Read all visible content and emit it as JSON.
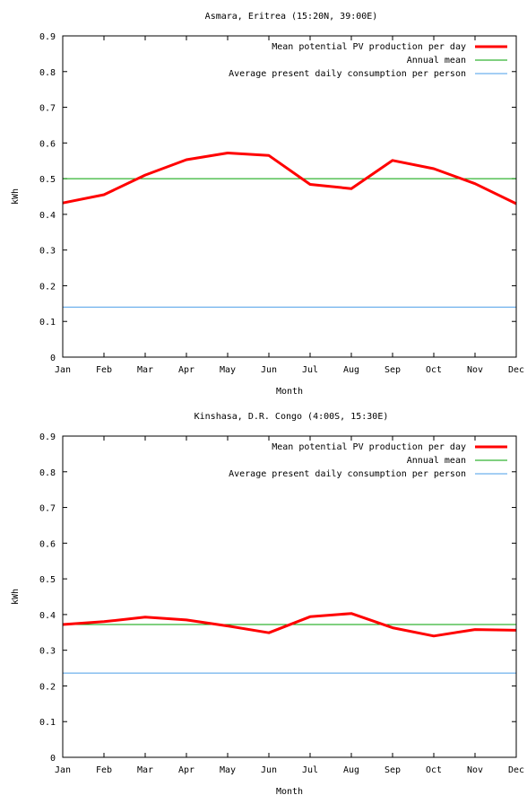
{
  "chart_data": [
    {
      "type": "line",
      "title": "Asmara, Eritrea (15:20N, 39:00E)",
      "xlabel": "Month",
      "ylabel": "kWh",
      "categories": [
        "Jan",
        "Feb",
        "Mar",
        "Apr",
        "May",
        "Jun",
        "Jul",
        "Aug",
        "Sep",
        "Oct",
        "Nov",
        "Dec"
      ],
      "ylim": [
        0,
        0.9
      ],
      "yticks": [
        "0",
        "0.1",
        "0.2",
        "0.3",
        "0.4",
        "0.5",
        "0.6",
        "0.7",
        "0.8",
        "0.9"
      ],
      "grid": false,
      "legend_position": "top-right",
      "series": [
        {
          "name": "Mean potential PV production per day",
          "color": "#ff0000",
          "values": [
            0.432,
            0.455,
            0.51,
            0.553,
            0.572,
            0.565,
            0.484,
            0.472,
            0.551,
            0.528,
            0.486,
            0.43
          ]
        },
        {
          "name": "Annual mean",
          "color": "#00a000",
          "values": [
            0.5,
            0.5,
            0.5,
            0.5,
            0.5,
            0.5,
            0.5,
            0.5,
            0.5,
            0.5,
            0.5,
            0.5
          ]
        },
        {
          "name": "Average present daily consumption per person",
          "color": "#4a9ee8",
          "values": [
            0.14,
            0.14,
            0.14,
            0.14,
            0.14,
            0.14,
            0.14,
            0.14,
            0.14,
            0.14,
            0.14,
            0.14
          ]
        }
      ]
    },
    {
      "type": "line",
      "title": "Kinshasa, D.R. Congo (4:00S, 15:30E)",
      "xlabel": "Month",
      "ylabel": "kWh",
      "categories": [
        "Jan",
        "Feb",
        "Mar",
        "Apr",
        "May",
        "Jun",
        "Jul",
        "Aug",
        "Sep",
        "Oct",
        "Nov",
        "Dec"
      ],
      "ylim": [
        0,
        0.9
      ],
      "yticks": [
        "0",
        "0.1",
        "0.2",
        "0.3",
        "0.4",
        "0.5",
        "0.6",
        "0.7",
        "0.8",
        "0.9"
      ],
      "grid": false,
      "legend_position": "top-right",
      "series": [
        {
          "name": "Mean potential PV production per day",
          "color": "#ff0000",
          "values": [
            0.372,
            0.38,
            0.393,
            0.385,
            0.368,
            0.349,
            0.394,
            0.403,
            0.363,
            0.34,
            0.358,
            0.356
          ]
        },
        {
          "name": "Annual mean",
          "color": "#00a000",
          "values": [
            0.372,
            0.372,
            0.372,
            0.372,
            0.372,
            0.372,
            0.372,
            0.372,
            0.372,
            0.372,
            0.372,
            0.372
          ]
        },
        {
          "name": "Average present daily consumption per person",
          "color": "#4a9ee8",
          "values": [
            0.236,
            0.236,
            0.236,
            0.236,
            0.236,
            0.236,
            0.236,
            0.236,
            0.236,
            0.236,
            0.236,
            0.236
          ]
        }
      ]
    }
  ]
}
